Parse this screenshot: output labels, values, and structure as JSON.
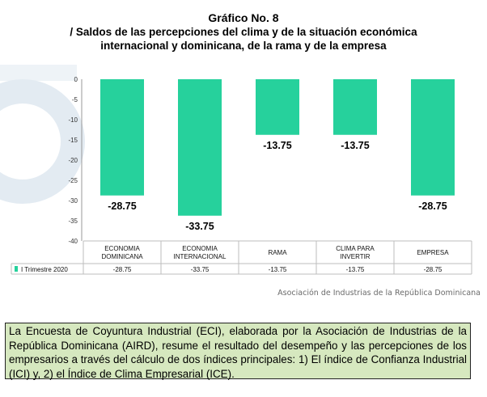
{
  "title": {
    "line1": "Gráfico No. 8",
    "line2": "/ Saldos de las percepciones del clima y de la situación económica",
    "line3": "internacional y dominicana, de la rama y de la empresa"
  },
  "attribution": "Asociación de Industrias de la República Dominicana",
  "note": "La Encuesta de Coyuntura Industrial (ECI), elaborada por la Asociación de Industrias de la República Dominicana (AIRD), resume el resultado del desempeño y las percepciones de los empresarios a través del cálculo de dos índices principales: 1) El índice de Confianza Industrial (ICI) y, 2) el Índice de Clima Empresarial (ICE).",
  "colors": {
    "bar": "#26d19c",
    "background_watermark": "#e3ebf2"
  },
  "chart_data": {
    "type": "bar",
    "categories": [
      [
        "ECONOMIA",
        "DOMINICANA"
      ],
      [
        "ECONOMIA",
        "INTERNACIONAL"
      ],
      [
        "RAMA"
      ],
      [
        "CLIMA PARA",
        "INVERTIR"
      ],
      [
        "EMPRESA"
      ]
    ],
    "series": [
      {
        "name": "I Trimestre 2020",
        "values": [
          -28.75,
          -33.75,
          -13.75,
          -13.75,
          -28.75
        ]
      }
    ],
    "data_labels": [
      "-28.75",
      "-33.75",
      "-13.75",
      "-13.75",
      "-28.75"
    ],
    "table_values": [
      "-28.75",
      "-33.75",
      "-13.75",
      "-13.75",
      "-28.75"
    ],
    "yticks": [
      0,
      -5,
      -10,
      -15,
      -20,
      -25,
      -30,
      -35,
      -40
    ],
    "ylim": [
      -40,
      0
    ],
    "grid": false,
    "legend": "data-table"
  }
}
